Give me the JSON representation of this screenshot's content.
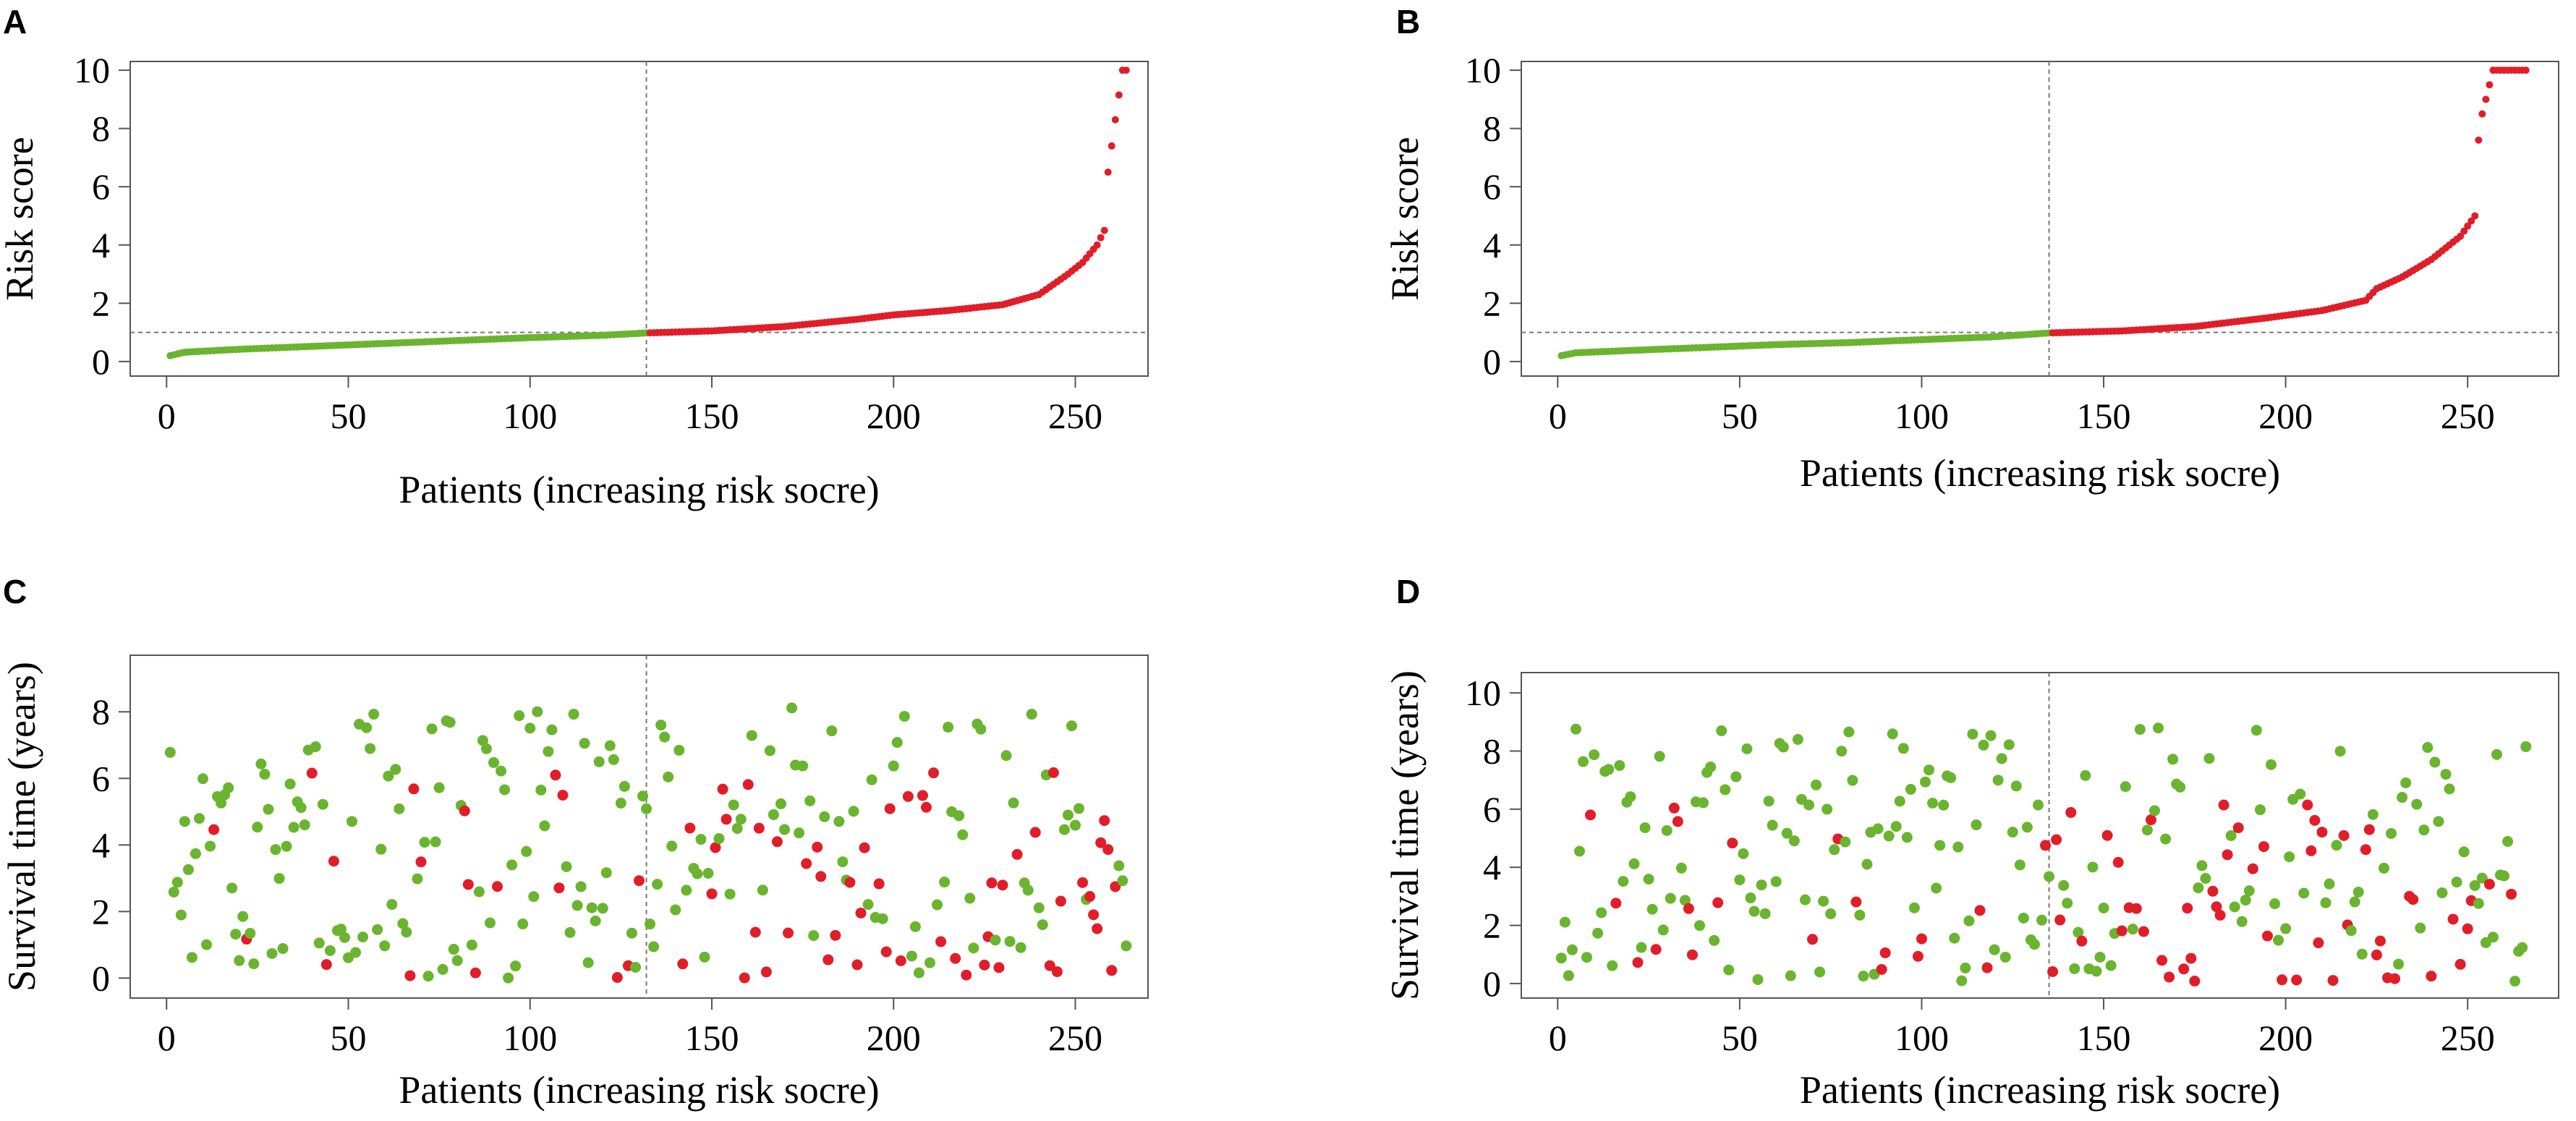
{
  "chart_data": [
    {
      "id": "A",
      "type": "scatter",
      "variant": "risk_score",
      "label": "A",
      "xlabel": "Patients (increasing risk socre)",
      "ylabel": "Risk score",
      "xlim": [
        -10,
        270
      ],
      "ylim": [
        -0.5,
        10.3
      ],
      "xticks": [
        0,
        50,
        100,
        150,
        200,
        250
      ],
      "yticks": [
        0,
        2,
        4,
        6,
        8,
        10
      ],
      "n": 264,
      "cutoff_index": 132,
      "cutoff_value": 1,
      "colors": {
        "low": "#6ab42f",
        "high": "#e01e2a"
      },
      "curve": [
        [
          1,
          0.2
        ],
        [
          5,
          0.32
        ],
        [
          20,
          0.42
        ],
        [
          40,
          0.52
        ],
        [
          60,
          0.62
        ],
        [
          80,
          0.72
        ],
        [
          100,
          0.82
        ],
        [
          120,
          0.9
        ],
        [
          132,
          0.98
        ],
        [
          150,
          1.05
        ],
        [
          170,
          1.2
        ],
        [
          190,
          1.45
        ],
        [
          200,
          1.6
        ],
        [
          215,
          1.75
        ],
        [
          230,
          1.95
        ],
        [
          240,
          2.3
        ],
        [
          248,
          3.0
        ],
        [
          252,
          3.4
        ],
        [
          256,
          4.0
        ],
        [
          258,
          4.5
        ],
        [
          259,
          6.5
        ],
        [
          261,
          8.3
        ],
        [
          263,
          10
        ],
        [
          264,
          10
        ]
      ]
    },
    {
      "id": "B",
      "type": "scatter",
      "variant": "risk_score",
      "label": "B",
      "xlabel": "Patients (increasing risk socre)",
      "ylabel": "Risk score",
      "xlim": [
        -10,
        275
      ],
      "ylim": [
        -0.5,
        10.3
      ],
      "xticks": [
        0,
        50,
        100,
        150,
        200,
        250
      ],
      "yticks": [
        0,
        2,
        4,
        6,
        8,
        10
      ],
      "n": 266,
      "cutoff_index": 135,
      "cutoff_value": 1,
      "colors": {
        "low": "#6ab42f",
        "high": "#e01e2a"
      },
      "curve": [
        [
          1,
          0.2
        ],
        [
          5,
          0.3
        ],
        [
          20,
          0.38
        ],
        [
          40,
          0.48
        ],
        [
          60,
          0.58
        ],
        [
          80,
          0.65
        ],
        [
          100,
          0.75
        ],
        [
          120,
          0.85
        ],
        [
          135,
          0.98
        ],
        [
          155,
          1.05
        ],
        [
          175,
          1.2
        ],
        [
          195,
          1.5
        ],
        [
          210,
          1.75
        ],
        [
          222,
          2.1
        ],
        [
          225,
          2.5
        ],
        [
          232,
          2.9
        ],
        [
          240,
          3.5
        ],
        [
          248,
          4.3
        ],
        [
          252,
          5.0
        ],
        [
          253,
          7.6
        ],
        [
          254,
          8.5
        ],
        [
          257,
          10
        ],
        [
          266,
          10
        ]
      ]
    },
    {
      "id": "C",
      "type": "scatter",
      "variant": "survival",
      "label": "C",
      "xlabel": "Patients (increasing risk socre)",
      "ylabel": "Survival time (years)",
      "xlim": [
        -10,
        270
      ],
      "ylim": [
        -0.6,
        9.7
      ],
      "xticks": [
        0,
        50,
        100,
        150,
        200,
        250
      ],
      "yticks": [
        0,
        2,
        4,
        6,
        8
      ],
      "n": 264,
      "cutoff_index": 132,
      "colors": {
        "alive": "#6ab42f",
        "dead": "#e01e2a"
      },
      "seed": 17,
      "dead_fraction_low": 0.13,
      "dead_fraction_high": 0.45,
      "max_time": 9.3
    },
    {
      "id": "D",
      "type": "scatter",
      "variant": "survival",
      "label": "D",
      "xlabel": "Patients (increasing risk socre)",
      "ylabel": "Survival time (years)",
      "xlim": [
        -10,
        275
      ],
      "ylim": [
        -0.5,
        10.7
      ],
      "xticks": [
        0,
        50,
        100,
        150,
        200,
        250
      ],
      "yticks": [
        0,
        2,
        4,
        6,
        8,
        10
      ],
      "n": 266,
      "cutoff_index": 135,
      "colors": {
        "alive": "#6ab42f",
        "dead": "#e01e2a"
      },
      "seed": 42,
      "dead_fraction_low": 0.15,
      "dead_fraction_high": 0.45,
      "max_time": 10
    }
  ]
}
